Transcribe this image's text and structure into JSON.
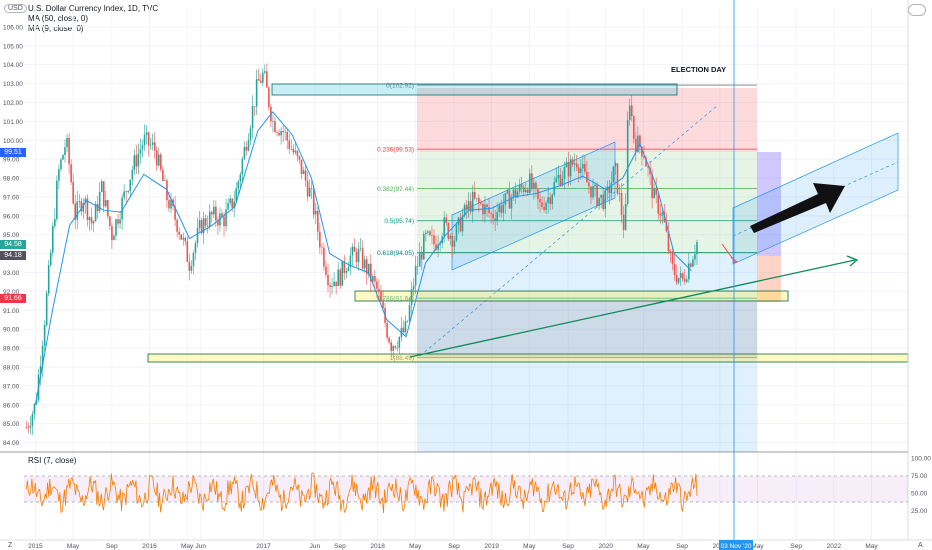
{
  "legend": {
    "title": "U.S. Dollar Currency Index, 1D, TVC",
    "ma50": "MA (50, close, 0)",
    "ma9": "MA (9, close, 0)",
    "currency_badge": "USD"
  },
  "annotation": {
    "election_day": "ELECTION DAY",
    "date_marker": "03 Nov '20"
  },
  "rsi": {
    "label": "RSI (7, close)",
    "ticks": [
      "100.00",
      "75.00",
      "50.00",
      "25.00"
    ],
    "ylim": [
      0,
      100
    ]
  },
  "price_tags": {
    "ma_blue": "99.51",
    "last": "94.58",
    "ma_dark": "94.18",
    "red": "91.66"
  },
  "fib": [
    {
      "label": "0(102.92)",
      "level": 102.92,
      "color": "#787b86"
    },
    {
      "label": "0.236(99.53)",
      "level": 99.53,
      "color": "#f23645"
    },
    {
      "label": "0.382(97.44)",
      "level": 97.44,
      "color": "#4caf50"
    },
    {
      "label": "0.5(95.74)",
      "level": 95.74,
      "color": "#089981"
    },
    {
      "label": "0.618(94.05)",
      "level": 94.05,
      "color": "#00897b"
    },
    {
      "label": "0.786(91.64)",
      "level": 91.64,
      "color": "#26a69a"
    },
    {
      "label": "1(88.49)",
      "level": 88.49,
      "color": "#787b86"
    }
  ],
  "colors": {
    "up": "#26a69a",
    "down": "#ef5350",
    "ma50": "#2196f3",
    "trend": "#0b8a55",
    "rsi": "#f57c00"
  },
  "chart_data": {
    "type": "line",
    "title": "U.S. Dollar Currency Index, 1D, TVC",
    "xlabel": "",
    "ylabel": "",
    "ylim": [
      83.5,
      107
    ],
    "y_ticks": [
      "106.00",
      "105.00",
      "104.00",
      "103.00",
      "102.00",
      "101.00",
      "100.00",
      "99.00",
      "98.00",
      "97.00",
      "96.00",
      "95.00",
      "94.00",
      "93.00",
      "92.00",
      "91.00",
      "90.00",
      "89.00",
      "88.00",
      "87.00",
      "86.00",
      "85.00",
      "84.00"
    ],
    "x_ticks": [
      "2015",
      "May",
      "Sep",
      "2016",
      "May",
      "Jun",
      "2017",
      "Jun",
      "Sep",
      "2018",
      "May",
      "Sep",
      "2019",
      "May",
      "Sep",
      "2020",
      "May",
      "Sep",
      "2021",
      "May",
      "Sep",
      "2022",
      "May"
    ],
    "x_range": [
      2014.9,
      2022.65
    ],
    "series": [
      {
        "values": [
          [
            2014.92,
            84.8
          ],
          [
            2015.0,
            86
          ],
          [
            2015.08,
            90.5
          ],
          [
            2015.15,
            95
          ],
          [
            2015.2,
            98.2
          ],
          [
            2015.27,
            100
          ],
          [
            2015.35,
            96
          ],
          [
            2015.42,
            97
          ],
          [
            2015.5,
            95.5
          ],
          [
            2015.58,
            97.5
          ],
          [
            2015.67,
            95
          ],
          [
            2015.75,
            96.5
          ],
          [
            2015.85,
            98.5
          ],
          [
            2015.95,
            100
          ],
          [
            2016.05,
            99.5
          ],
          [
            2016.15,
            97
          ],
          [
            2016.25,
            95.5
          ],
          [
            2016.35,
            93.5
          ],
          [
            2016.45,
            95.5
          ],
          [
            2016.55,
            96
          ],
          [
            2016.65,
            95.8
          ],
          [
            2016.75,
            97
          ],
          [
            2016.85,
            100
          ],
          [
            2016.95,
            103
          ],
          [
            2017.0,
            103.5
          ],
          [
            2017.08,
            101
          ],
          [
            2017.17,
            100.5
          ],
          [
            2017.25,
            99.5
          ],
          [
            2017.33,
            98.5
          ],
          [
            2017.42,
            97
          ],
          [
            2017.5,
            94.5
          ],
          [
            2017.58,
            92.5
          ],
          [
            2017.67,
            92.8
          ],
          [
            2017.75,
            93.8
          ],
          [
            2017.83,
            94
          ],
          [
            2017.92,
            93
          ],
          [
            2018.0,
            92
          ],
          [
            2018.08,
            90
          ],
          [
            2018.12,
            89.2
          ],
          [
            2018.18,
            89.5
          ],
          [
            2018.25,
            90
          ],
          [
            2018.33,
            93
          ],
          [
            2018.42,
            94.8
          ],
          [
            2018.5,
            94.5
          ],
          [
            2018.58,
            95.5
          ],
          [
            2018.67,
            94.8
          ],
          [
            2018.75,
            96
          ],
          [
            2018.83,
            96.8
          ],
          [
            2018.92,
            96.5
          ],
          [
            2019.0,
            96
          ],
          [
            2019.08,
            96.5
          ],
          [
            2019.17,
            97
          ],
          [
            2019.25,
            97.4
          ],
          [
            2019.33,
            97.8
          ],
          [
            2019.42,
            96.5
          ],
          [
            2019.5,
            97
          ],
          [
            2019.58,
            98
          ],
          [
            2019.67,
            98.5
          ],
          [
            2019.75,
            99
          ],
          [
            2019.83,
            97.8
          ],
          [
            2019.92,
            97
          ],
          [
            2020.0,
            96.8
          ],
          [
            2020.08,
            98.5
          ],
          [
            2020.17,
            95
          ],
          [
            2020.2,
            102.8
          ],
          [
            2020.25,
            100
          ],
          [
            2020.33,
            99.5
          ],
          [
            2020.42,
            97
          ],
          [
            2020.5,
            96
          ],
          [
            2020.58,
            93.2
          ],
          [
            2020.67,
            92.5
          ],
          [
            2020.75,
            93.8
          ],
          [
            2020.8,
            94.6
          ]
        ]
      },
      {
        "name": "MA (50, close, 0)",
        "values": [
          [
            2015.0,
            86
          ],
          [
            2015.15,
            91
          ],
          [
            2015.3,
            95.5
          ],
          [
            2015.45,
            96.8
          ],
          [
            2015.6,
            96.3
          ],
          [
            2015.75,
            96.2
          ],
          [
            2015.95,
            98.2
          ],
          [
            2016.15,
            97.4
          ],
          [
            2016.35,
            94.8
          ],
          [
            2016.55,
            95.5
          ],
          [
            2016.75,
            96.5
          ],
          [
            2016.95,
            100.5
          ],
          [
            2017.08,
            101.5
          ],
          [
            2017.25,
            100.3
          ],
          [
            2017.42,
            98
          ],
          [
            2017.58,
            94
          ],
          [
            2017.75,
            93.4
          ],
          [
            2017.92,
            93
          ],
          [
            2018.08,
            90.5
          ],
          [
            2018.25,
            89.6
          ],
          [
            2018.42,
            93.5
          ],
          [
            2018.6,
            95
          ],
          [
            2018.8,
            96.3
          ],
          [
            2019.0,
            96.4
          ],
          [
            2019.2,
            97
          ],
          [
            2019.4,
            97.2
          ],
          [
            2019.6,
            97.6
          ],
          [
            2019.8,
            98.1
          ],
          [
            2020.0,
            97.4
          ],
          [
            2020.15,
            98
          ],
          [
            2020.3,
            99.8
          ],
          [
            2020.45,
            97.5
          ],
          [
            2020.6,
            94
          ],
          [
            2020.75,
            93.1
          ]
        ]
      }
    ],
    "annotations": [
      "ELECTION DAY",
      "03 Nov '20"
    ]
  }
}
